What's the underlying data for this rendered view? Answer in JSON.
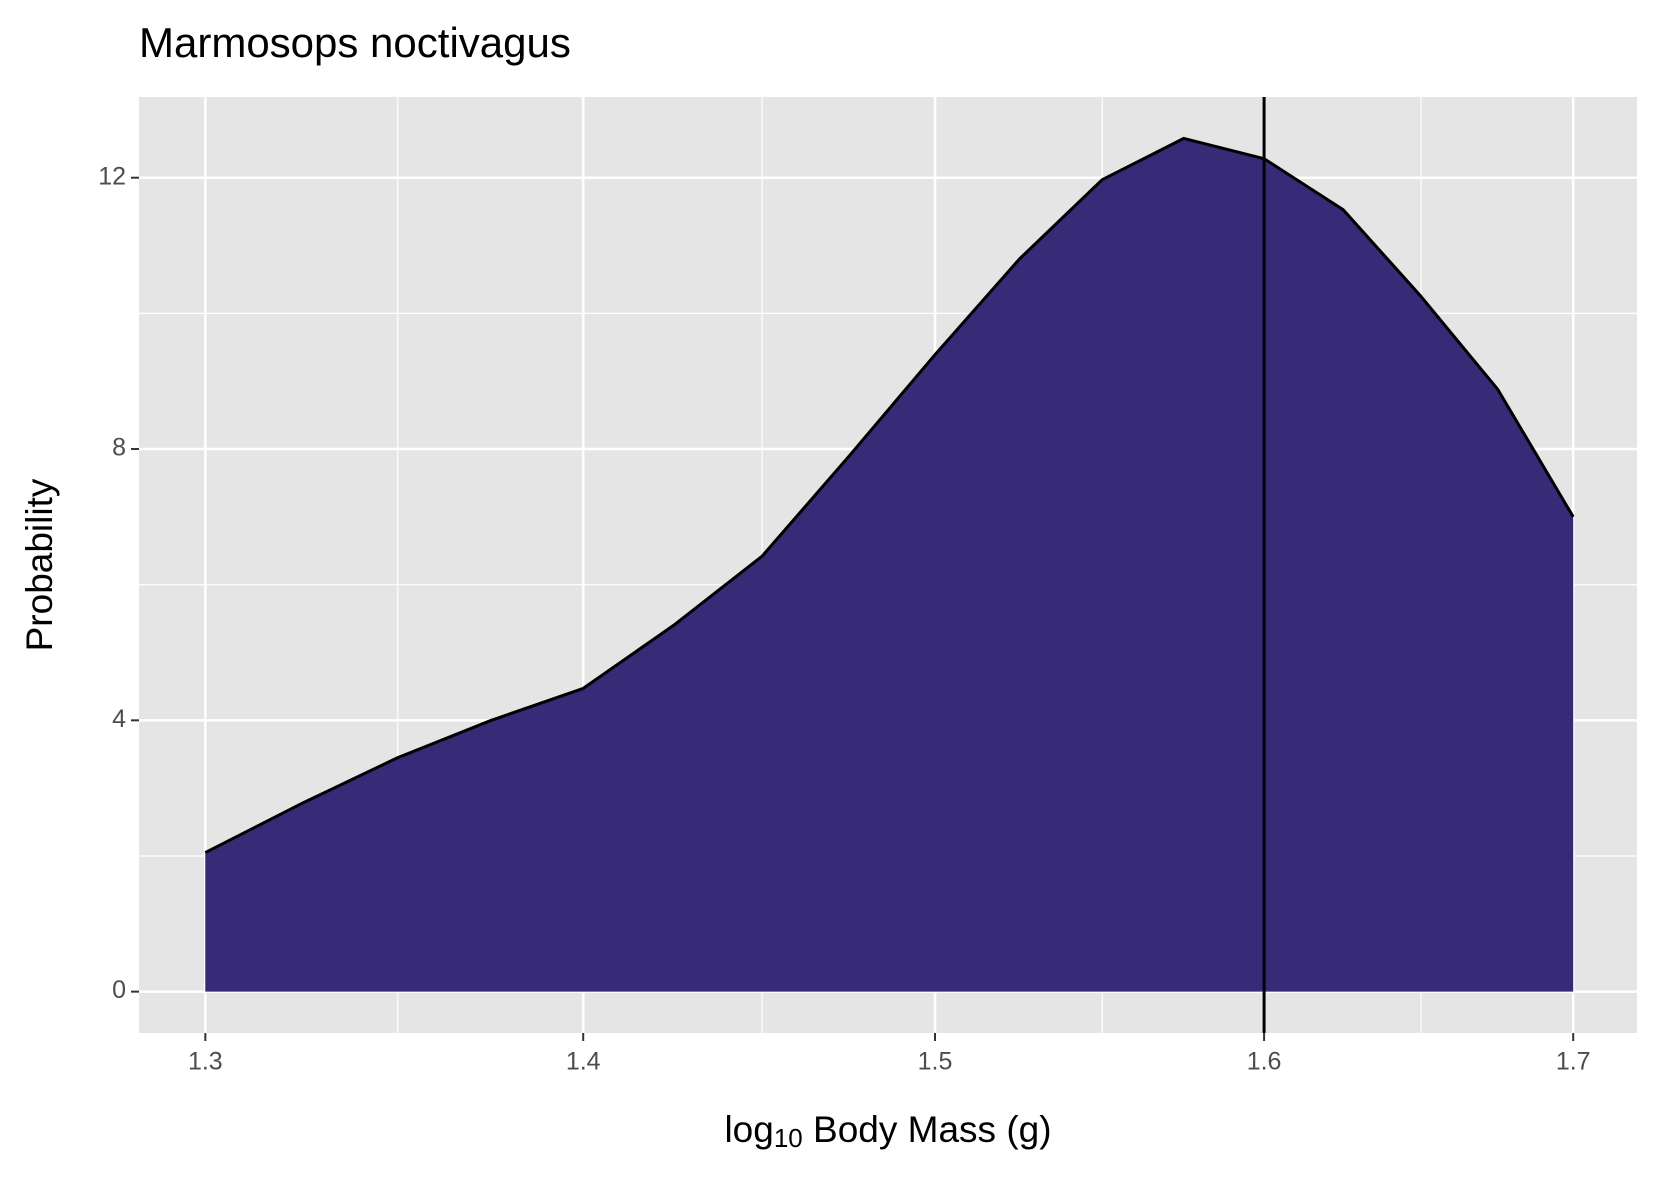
{
  "chart_data": {
    "type": "area",
    "title": "Marmosops noctivagus",
    "xlabel": [
      "log",
      "10",
      " Body Mass (g)"
    ],
    "ylabel": "Probability",
    "x": [
      1.3,
      1.325,
      1.35,
      1.375,
      1.4,
      1.425,
      1.45,
      1.475,
      1.5,
      1.525,
      1.55,
      1.575,
      1.6,
      1.625,
      1.65,
      1.675,
      1.7
    ],
    "values": [
      2.05,
      2.78,
      3.45,
      4.0,
      4.47,
      5.4,
      6.42,
      7.9,
      9.39,
      10.8,
      11.97,
      12.58,
      12.28,
      11.53,
      10.25,
      8.88,
      7.0
    ],
    "color": "#372a77",
    "line_color": "#000000",
    "reference_x": 1.6,
    "xlog": true,
    "xlim": [
      1.2832,
      1.7214
    ],
    "ylim": [
      -0.61,
      13.19
    ],
    "xticks": [
      1.3,
      1.4,
      1.5,
      1.6,
      1.7
    ],
    "yticks": [
      0,
      4,
      8,
      12
    ],
    "xminor": [
      1.35,
      1.45,
      1.55,
      1.65
    ],
    "yminor": [
      2,
      6,
      10
    ],
    "grid": true
  }
}
